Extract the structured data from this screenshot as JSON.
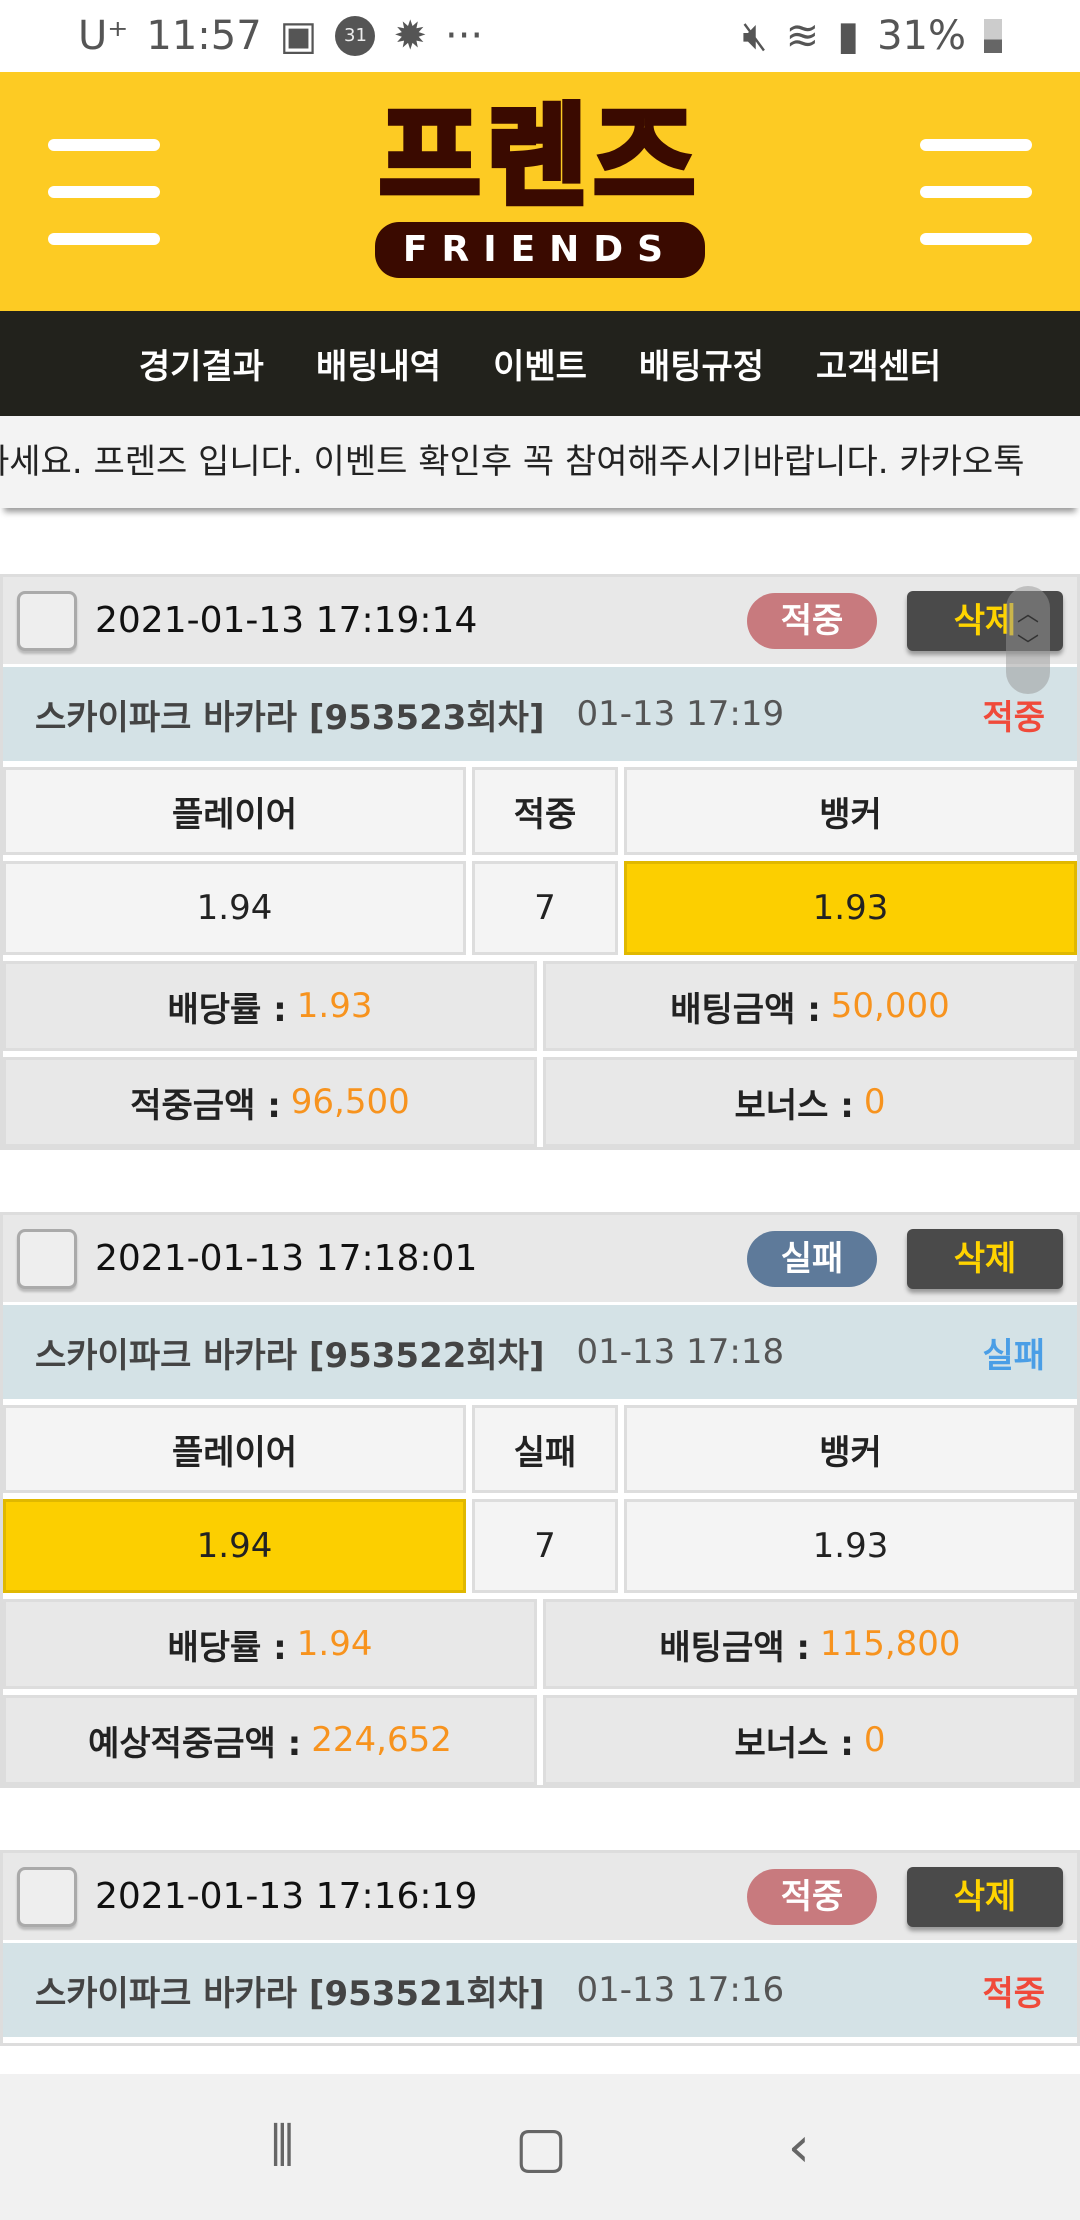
{
  "status": {
    "carrier": "U⁺",
    "time": "11:57",
    "battery": "31%",
    "icons": [
      "image-icon",
      "calendar-31-icon",
      "gear-icon",
      "more-icon",
      "mute-icon",
      "wifi-icon",
      "signal-icon",
      "battery-icon"
    ],
    "calendar": "31"
  },
  "header": {
    "logo_ko": "프렌즈",
    "logo_en": "FRIENDS",
    "brand_color": "#fdcb23"
  },
  "nav": [
    "경기결과",
    "배팅내역",
    "이벤트",
    "배팅규정",
    "고객센터"
  ],
  "marquee": "하세요. 프렌즈 입니다. 이벤트 확인후 꼭 참여해주시기바랍니다. 카카오톡",
  "cards": [
    {
      "datetime": "2021-01-13 17:19:14",
      "badge": "적중",
      "badge_color": "#c87a7e",
      "delete": "삭제",
      "game": "스카이파크 바카라  [953523회차]",
      "time": "01-13 17:19",
      "result": "적중",
      "result_color": "#f04a3a",
      "table": {
        "headers": [
          "플레이어",
          "적중",
          "뱅커"
        ],
        "values": [
          "1.94",
          "7",
          "1.93"
        ],
        "selected": "banker"
      },
      "summary": [
        {
          "label": "배당률 :",
          "value": "1.93"
        },
        {
          "label": "배팅금액 :",
          "value": "50,000"
        },
        {
          "label": "적중금액 :",
          "value": "96,500"
        },
        {
          "label": "보너스 :",
          "value": "0"
        }
      ]
    },
    {
      "datetime": "2021-01-13 17:18:01",
      "badge": "실패",
      "badge_color": "#5e7a9a",
      "delete": "삭제",
      "game": "스카이파크 바카라  [953522회차]",
      "time": "01-13 17:18",
      "result": "실패",
      "result_color": "#4a9ee6",
      "table": {
        "headers": [
          "플레이어",
          "실패",
          "뱅커"
        ],
        "values": [
          "1.94",
          "7",
          "1.93"
        ],
        "selected": "player"
      },
      "summary": [
        {
          "label": "배당률 :",
          "value": "1.94"
        },
        {
          "label": "배팅금액 :",
          "value": "115,800"
        },
        {
          "label": "예상적중금액 :",
          "value": "224,652"
        },
        {
          "label": "보너스 :",
          "value": "0"
        }
      ]
    },
    {
      "datetime": "2021-01-13 17:16:19",
      "badge": "적중",
      "badge_color": "#c87a7e",
      "delete": "삭제",
      "game": "스카이파크 바카라  [953521회차]",
      "time": "01-13 17:16",
      "result": "적중",
      "result_color": "#f04a3a"
    }
  ]
}
